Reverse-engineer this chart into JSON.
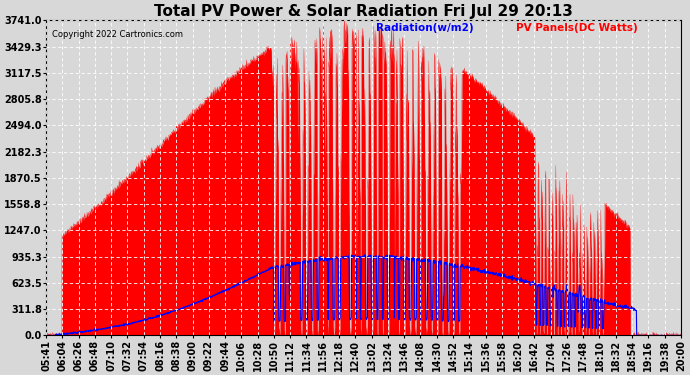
{
  "title": "Total PV Power & Solar Radiation Fri Jul 29 20:13",
  "copyright_text": "Copyright 2022 Cartronics.com",
  "legend_radiation": "Radiation(w/m2)",
  "legend_pv": "PV Panels(DC Watts)",
  "radiation_color": "blue",
  "pv_color": "red",
  "background_color": "#d8d8d8",
  "plot_bg_color": "#d8d8d8",
  "grid_color": "white",
  "title_fontsize": 11,
  "tick_fontsize": 7,
  "ymin": 0.0,
  "ymax": 3741.0,
  "yticks": [
    0.0,
    311.8,
    623.5,
    935.3,
    1247.0,
    1558.8,
    1870.5,
    2182.3,
    2494.0,
    2805.8,
    3117.5,
    3429.3,
    3741.0
  ],
  "xtick_labels": [
    "05:41",
    "06:04",
    "06:26",
    "06:48",
    "07:10",
    "07:32",
    "07:54",
    "08:16",
    "08:38",
    "09:00",
    "09:22",
    "09:44",
    "10:06",
    "10:28",
    "10:50",
    "11:12",
    "11:34",
    "11:56",
    "12:18",
    "12:40",
    "13:02",
    "13:24",
    "13:46",
    "14:08",
    "14:30",
    "14:52",
    "15:14",
    "15:36",
    "15:58",
    "16:20",
    "16:42",
    "17:04",
    "17:26",
    "17:48",
    "18:10",
    "18:32",
    "18:54",
    "19:16",
    "19:38",
    "20:00"
  ]
}
